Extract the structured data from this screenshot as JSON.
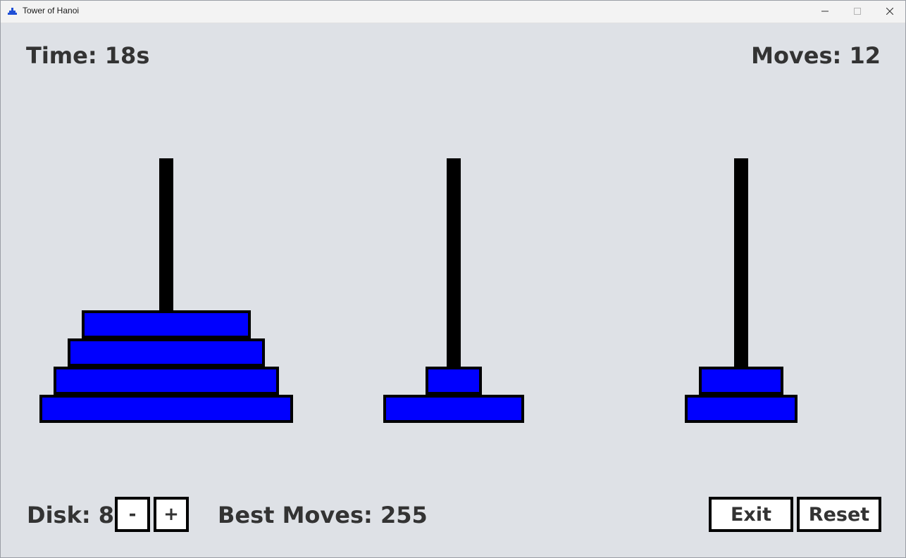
{
  "window": {
    "title": "Tower of Hanoi",
    "icon": "tower-app-icon"
  },
  "hud": {
    "time": "Time: 18s",
    "moves": "Moves: 12"
  },
  "controls": {
    "disk_count": "Disk: 8",
    "minus_label": "-",
    "plus_label": "+",
    "best_moves": "Best Moves: 255",
    "exit_label": "Exit",
    "reset_label": "Reset"
  },
  "colors": {
    "background": "#dee1e6",
    "disk_fill": "#0000ff",
    "disk_border": "#000000",
    "peg": "#000000",
    "text": "#333333"
  },
  "pegs": [
    {
      "disk_sizes": [
        8,
        7,
        6,
        5
      ]
    },
    {
      "disk_sizes": [
        4,
        1
      ]
    },
    {
      "disk_sizes": [
        3,
        2
      ]
    }
  ]
}
